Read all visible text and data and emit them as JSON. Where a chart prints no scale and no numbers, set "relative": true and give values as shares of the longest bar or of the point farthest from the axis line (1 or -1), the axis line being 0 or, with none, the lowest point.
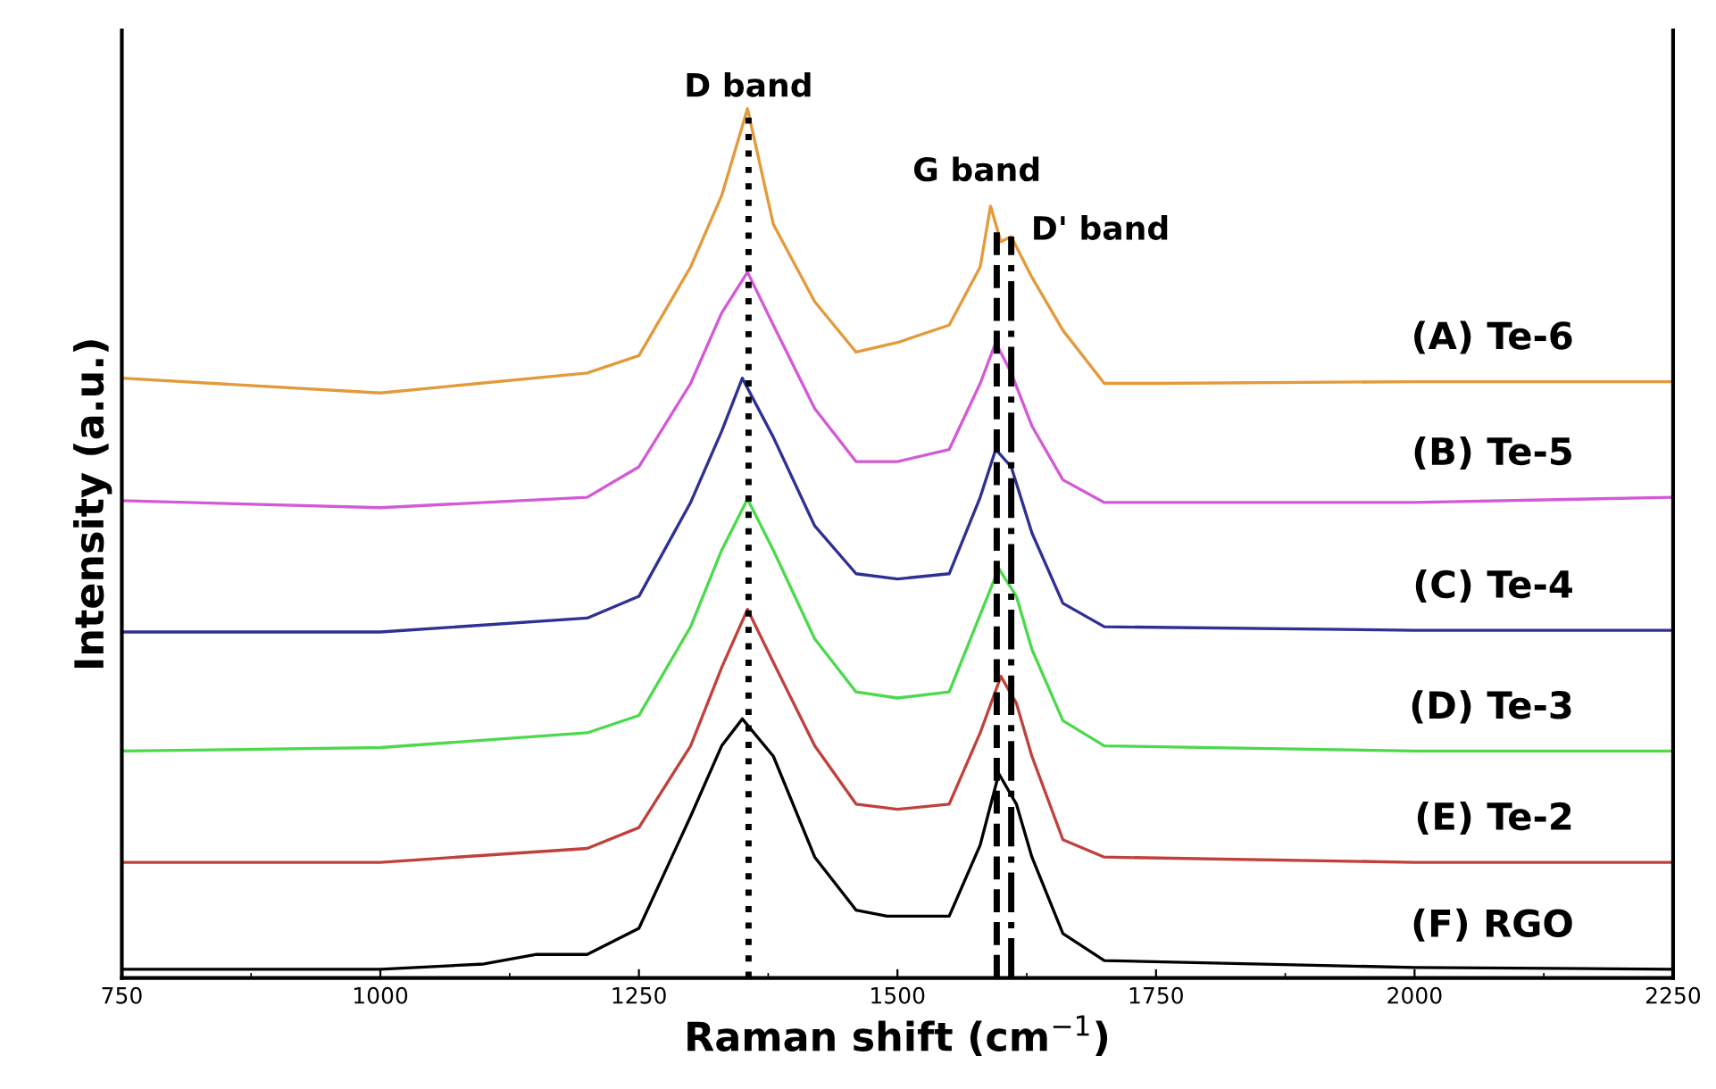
{
  "chart_data": {
    "type": "line",
    "relative": true,
    "xlabel": "Raman shift (cm$^{−1}$)",
    "ylabel": "Intensity (a.u.)",
    "xlim": [
      750,
      2250
    ],
    "xticks": [
      750,
      1000,
      1250,
      1500,
      1750,
      2000,
      2250
    ],
    "series": [
      {
        "name": "(A) Te-6",
        "color": "#e39a3b",
        "x": [
          750,
          1000,
          1200,
          1250,
          1300,
          1330,
          1355,
          1380,
          1420,
          1460,
          1500,
          1550,
          1580,
          1590,
          1600,
          1610,
          1630,
          1660,
          1700,
          1750,
          2000,
          2250
        ],
        "values": [
          0.69,
          0.673,
          0.696,
          0.716,
          0.818,
          0.9,
          1.0,
          0.867,
          0.778,
          0.72,
          0.731,
          0.751,
          0.818,
          0.888,
          0.847,
          0.853,
          0.806,
          0.745,
          0.684,
          0.684,
          0.686,
          0.686
        ]
      },
      {
        "name": "(B) Te-5",
        "color": "#d35ad6",
        "x": [
          750,
          1000,
          1200,
          1250,
          1300,
          1330,
          1355,
          1380,
          1420,
          1460,
          1500,
          1550,
          1580,
          1595,
          1610,
          1630,
          1660,
          1700,
          2000,
          2250
        ],
        "values": [
          0.549,
          0.541,
          0.553,
          0.588,
          0.684,
          0.765,
          0.812,
          0.751,
          0.655,
          0.594,
          0.594,
          0.608,
          0.684,
          0.731,
          0.696,
          0.635,
          0.573,
          0.547,
          0.547,
          0.553
        ]
      },
      {
        "name": "(C) Te-4",
        "color": "#2e3192",
        "x": [
          750,
          1000,
          1200,
          1250,
          1300,
          1330,
          1350,
          1380,
          1420,
          1460,
          1500,
          1550,
          1580,
          1595,
          1610,
          1630,
          1660,
          1700,
          2000,
          2250
        ],
        "values": [
          0.398,
          0.398,
          0.414,
          0.439,
          0.547,
          0.629,
          0.69,
          0.622,
          0.52,
          0.465,
          0.459,
          0.465,
          0.553,
          0.608,
          0.588,
          0.512,
          0.431,
          0.404,
          0.4,
          0.4
        ]
      },
      {
        "name": "(D) Te-3",
        "color": "#4cd94c",
        "x": [
          750,
          1000,
          1200,
          1250,
          1300,
          1330,
          1355,
          1380,
          1420,
          1460,
          1500,
          1550,
          1580,
          1598,
          1615,
          1630,
          1660,
          1700,
          2000,
          2250
        ],
        "values": [
          0.261,
          0.265,
          0.282,
          0.302,
          0.404,
          0.492,
          0.551,
          0.492,
          0.39,
          0.329,
          0.322,
          0.329,
          0.418,
          0.471,
          0.439,
          0.378,
          0.296,
          0.267,
          0.261,
          0.261
        ]
      },
      {
        "name": "(E) Te-2",
        "color": "#c0413b",
        "x": [
          750,
          1000,
          1200,
          1250,
          1300,
          1330,
          1355,
          1380,
          1420,
          1460,
          1500,
          1550,
          1580,
          1600,
          1615,
          1630,
          1660,
          1700,
          2000,
          2250
        ],
        "values": [
          0.133,
          0.133,
          0.149,
          0.173,
          0.267,
          0.357,
          0.424,
          0.363,
          0.267,
          0.2,
          0.194,
          0.2,
          0.282,
          0.347,
          0.316,
          0.255,
          0.159,
          0.139,
          0.133,
          0.133
        ]
      },
      {
        "name": "(F) RGO",
        "color": "#000000",
        "x": [
          750,
          1000,
          1100,
          1150,
          1200,
          1250,
          1300,
          1330,
          1350,
          1380,
          1420,
          1460,
          1490,
          1550,
          1580,
          1598,
          1615,
          1630,
          1660,
          1700,
          2000,
          2250
        ],
        "values": [
          0.01,
          0.01,
          0.016,
          0.027,
          0.027,
          0.057,
          0.186,
          0.267,
          0.298,
          0.255,
          0.139,
          0.078,
          0.071,
          0.071,
          0.153,
          0.235,
          0.2,
          0.139,
          0.051,
          0.02,
          0.012,
          0.01
        ]
      }
    ],
    "ref_lines": [
      {
        "axis": "x",
        "value": 1356,
        "label": "D band",
        "color": "#000000",
        "line_style": "dotted"
      },
      {
        "axis": "x",
        "value": 1596,
        "label": "G band",
        "color": "#000000",
        "line_style": "dashed"
      },
      {
        "axis": "x",
        "value": 1610,
        "label": "D' band",
        "color": "#000000",
        "line_style": "dashdot"
      }
    ],
    "line_style": "solid",
    "legend": false
  }
}
